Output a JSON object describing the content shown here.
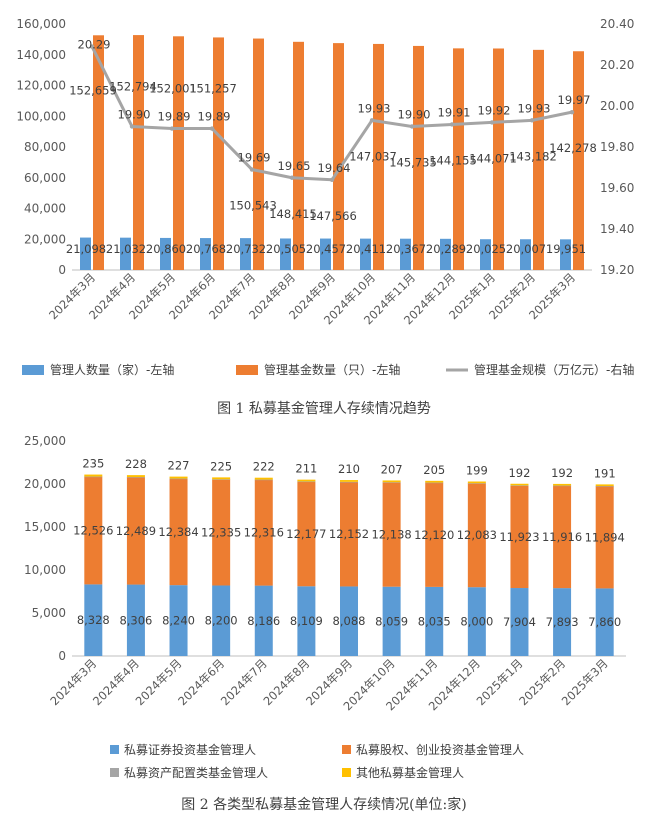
{
  "chart_data": [
    {
      "type": "bar",
      "title": "",
      "caption": "图 1  私募基金管理人存续情况趋势",
      "categories": [
        "2024年3月",
        "2024年4月",
        "2024年5月",
        "2024年6月",
        "2024年7月",
        "2024年8月",
        "2024年9月",
        "2024年10月",
        "2024年11月",
        "2024年12月",
        "2025年1月",
        "2025年2月",
        "2025年3月"
      ],
      "series": [
        {
          "name": "管理人数量（家）-左轴",
          "kind": "bar",
          "axis": "left",
          "color": "#5B9BD5",
          "values": [
            21098,
            21032,
            20860,
            20768,
            20732,
            20505,
            20457,
            20411,
            20367,
            20289,
            20025,
            20007,
            19951
          ],
          "labels": [
            "21,098",
            "21,032",
            "20,860",
            "20,768",
            "20,732",
            "20,505",
            "20,457",
            "20,411",
            "20,367",
            "20,289",
            "20,025",
            "20,007",
            "19,951"
          ]
        },
        {
          "name": "管理基金数量（只）-左轴",
          "kind": "bar",
          "axis": "left",
          "color": "#ED7D31",
          "values": [
            152659,
            152794,
            152001,
            151257,
            150543,
            148415,
            147566,
            147037,
            145735,
            144155,
            144071,
            143182,
            142278
          ],
          "labels": [
            "152,659",
            "152,794",
            "152,001",
            "151,257",
            "150,543",
            "148,415",
            "147,566",
            "147,037",
            "145,735",
            "144,155",
            "144,071",
            "143,182",
            "142,278"
          ]
        },
        {
          "name": "管理基金规模（万亿元）-右轴",
          "kind": "line",
          "axis": "right",
          "color": "#A5A5A5",
          "values": [
            20.29,
            19.9,
            19.89,
            19.89,
            19.69,
            19.65,
            19.64,
            19.93,
            19.9,
            19.91,
            19.92,
            19.93,
            19.97
          ],
          "labels": [
            "20.29",
            "19.90",
            "19.89",
            "19.89",
            "19.69",
            "19.65",
            "19.64",
            "19.93",
            "19.90",
            "19.91",
            "19.92",
            "19.93",
            "19.97"
          ]
        }
      ],
      "ylim_left": [
        0,
        160000
      ],
      "yticks_left": [
        "0",
        "20,000",
        "40,000",
        "60,000",
        "80,000",
        "100,000",
        "120,000",
        "140,000",
        "160,000"
      ],
      "ylim_right": [
        19.2,
        20.4
      ],
      "yticks_right": [
        "19.20",
        "19.40",
        "19.60",
        "19.80",
        "20.00",
        "20.20",
        "20.40"
      ],
      "grid": false,
      "legend": "bottom"
    },
    {
      "type": "bar",
      "stacked": true,
      "title": "",
      "caption": "图 2  各类型私募基金管理人存续情况(单位:家)",
      "categories": [
        "2024年3月",
        "2024年4月",
        "2024年5月",
        "2024年6月",
        "2024年7月",
        "2024年8月",
        "2024年9月",
        "2024年10月",
        "2024年11月",
        "2024年12月",
        "2025年1月",
        "2025年2月",
        "2025年3月"
      ],
      "series": [
        {
          "name": "私募证券投资基金管理人",
          "color": "#5B9BD5",
          "values": [
            8328,
            8306,
            8240,
            8200,
            8186,
            8109,
            8088,
            8059,
            8035,
            8000,
            7904,
            7893,
            7860
          ],
          "labels": [
            "8,328",
            "8,306",
            "8,240",
            "8,200",
            "8,186",
            "8,109",
            "8,088",
            "8,059",
            "8,035",
            "8,000",
            "7,904",
            "7,893",
            "7,860"
          ]
        },
        {
          "name": "私募股权、创业投资基金管理人",
          "color": "#ED7D31",
          "values": [
            12526,
            12489,
            12384,
            12335,
            12316,
            12177,
            12152,
            12138,
            12120,
            12083,
            11923,
            11916,
            11894
          ],
          "labels": [
            "12,526",
            "12,489",
            "12,384",
            "12,335",
            "12,316",
            "12,177",
            "12,152",
            "12,138",
            "12,120",
            "12,083",
            "11,923",
            "11,916",
            "11,894"
          ]
        },
        {
          "name": "私募资产配置类基金管理人",
          "color": "#A5A5A5",
          "values": [
            9,
            9,
            9,
            9,
            9,
            9,
            9,
            9,
            9,
            9,
            9,
            9,
            9
          ]
        },
        {
          "name": "其他私募基金管理人",
          "color": "#FFC000",
          "values": [
            235,
            228,
            227,
            225,
            222,
            211,
            210,
            207,
            205,
            199,
            192,
            192,
            191
          ],
          "labels": [
            "235",
            "228",
            "227",
            "225",
            "222",
            "211",
            "210",
            "207",
            "205",
            "199",
            "192",
            "192",
            "191"
          ]
        }
      ],
      "ylim": [
        0,
        25000
      ],
      "yticks": [
        "0",
        "5,000",
        "10,000",
        "15,000",
        "20,000",
        "25,000"
      ],
      "grid": false,
      "legend": "bottom"
    }
  ]
}
